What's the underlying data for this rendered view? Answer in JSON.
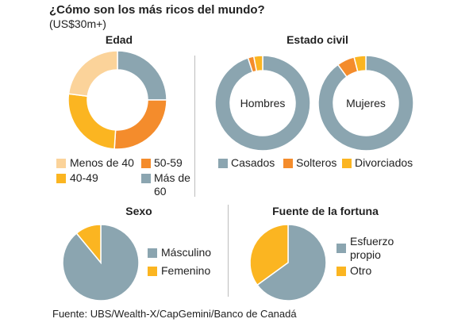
{
  "title": "¿Cómo son los más ricos del mundo?",
  "subtitle": "(US$30m+)",
  "colors": {
    "gray": "#8ba5b0",
    "orange": "#f48c2c",
    "yellow": "#fbb521",
    "light": "#fbd39a",
    "divider": "#bdbdbd"
  },
  "panels": {
    "edad": {
      "title": "Edad",
      "legend": [
        {
          "label": "Menos de 40",
          "color": "light"
        },
        {
          "label": "50-59",
          "color": "orange"
        },
        {
          "label": "40-49",
          "color": "yellow"
        },
        {
          "label": "Más de 60",
          "color": "gray"
        }
      ]
    },
    "estado": {
      "title": "Estado civil",
      "hombres_label": "Hombres",
      "mujeres_label": "Mujeres",
      "legend": [
        {
          "label": "Casados",
          "color": "gray"
        },
        {
          "label": "Solteros",
          "color": "orange"
        },
        {
          "label": "Divorciados",
          "color": "yellow"
        }
      ]
    },
    "sexo": {
      "title": "Sexo",
      "legend": [
        {
          "label": "Másculino",
          "color": "gray"
        },
        {
          "label": "Femenino",
          "color": "yellow"
        }
      ]
    },
    "fortuna": {
      "title": "Fuente de la fortuna",
      "legend": [
        {
          "label": "Esfuerzo propio",
          "color": "gray"
        },
        {
          "label": "Otro",
          "color": "yellow"
        }
      ]
    }
  },
  "source": "Fuente: UBS/Wealth-X/CapGemini/Banco de Canadá",
  "chart_data": [
    {
      "type": "pie",
      "title": "Edad",
      "donut": true,
      "slices": [
        {
          "label": "Más de 60",
          "value": 25,
          "color": "gray"
        },
        {
          "label": "50-59",
          "value": 26,
          "color": "orange"
        },
        {
          "label": "40-49",
          "value": 26,
          "color": "yellow"
        },
        {
          "label": "Menos de 40",
          "value": 23,
          "color": "light"
        }
      ]
    },
    {
      "type": "pie",
      "title": "Estado civil",
      "subtitle": "Hombres",
      "donut": true,
      "slices": [
        {
          "label": "Casados",
          "value": 95,
          "color": "gray"
        },
        {
          "label": "Solteros",
          "value": 2,
          "color": "orange"
        },
        {
          "label": "Divorciados",
          "value": 3,
          "color": "yellow"
        }
      ]
    },
    {
      "type": "pie",
      "title": "Estado civil",
      "subtitle": "Mujeres",
      "donut": true,
      "slices": [
        {
          "label": "Casados",
          "value": 90,
          "color": "gray"
        },
        {
          "label": "Solteros",
          "value": 6,
          "color": "orange"
        },
        {
          "label": "Divorciados",
          "value": 4,
          "color": "yellow"
        }
      ]
    },
    {
      "type": "pie",
      "title": "Sexo",
      "slices": [
        {
          "label": "Másculino",
          "value": 89,
          "color": "gray"
        },
        {
          "label": "Femenino",
          "value": 11,
          "color": "yellow"
        }
      ]
    },
    {
      "type": "pie",
      "title": "Fuente de la fortuna",
      "slices": [
        {
          "label": "Esfuerzo propio",
          "value": 65,
          "color": "gray"
        },
        {
          "label": "Otro",
          "value": 35,
          "color": "yellow"
        }
      ]
    }
  ]
}
